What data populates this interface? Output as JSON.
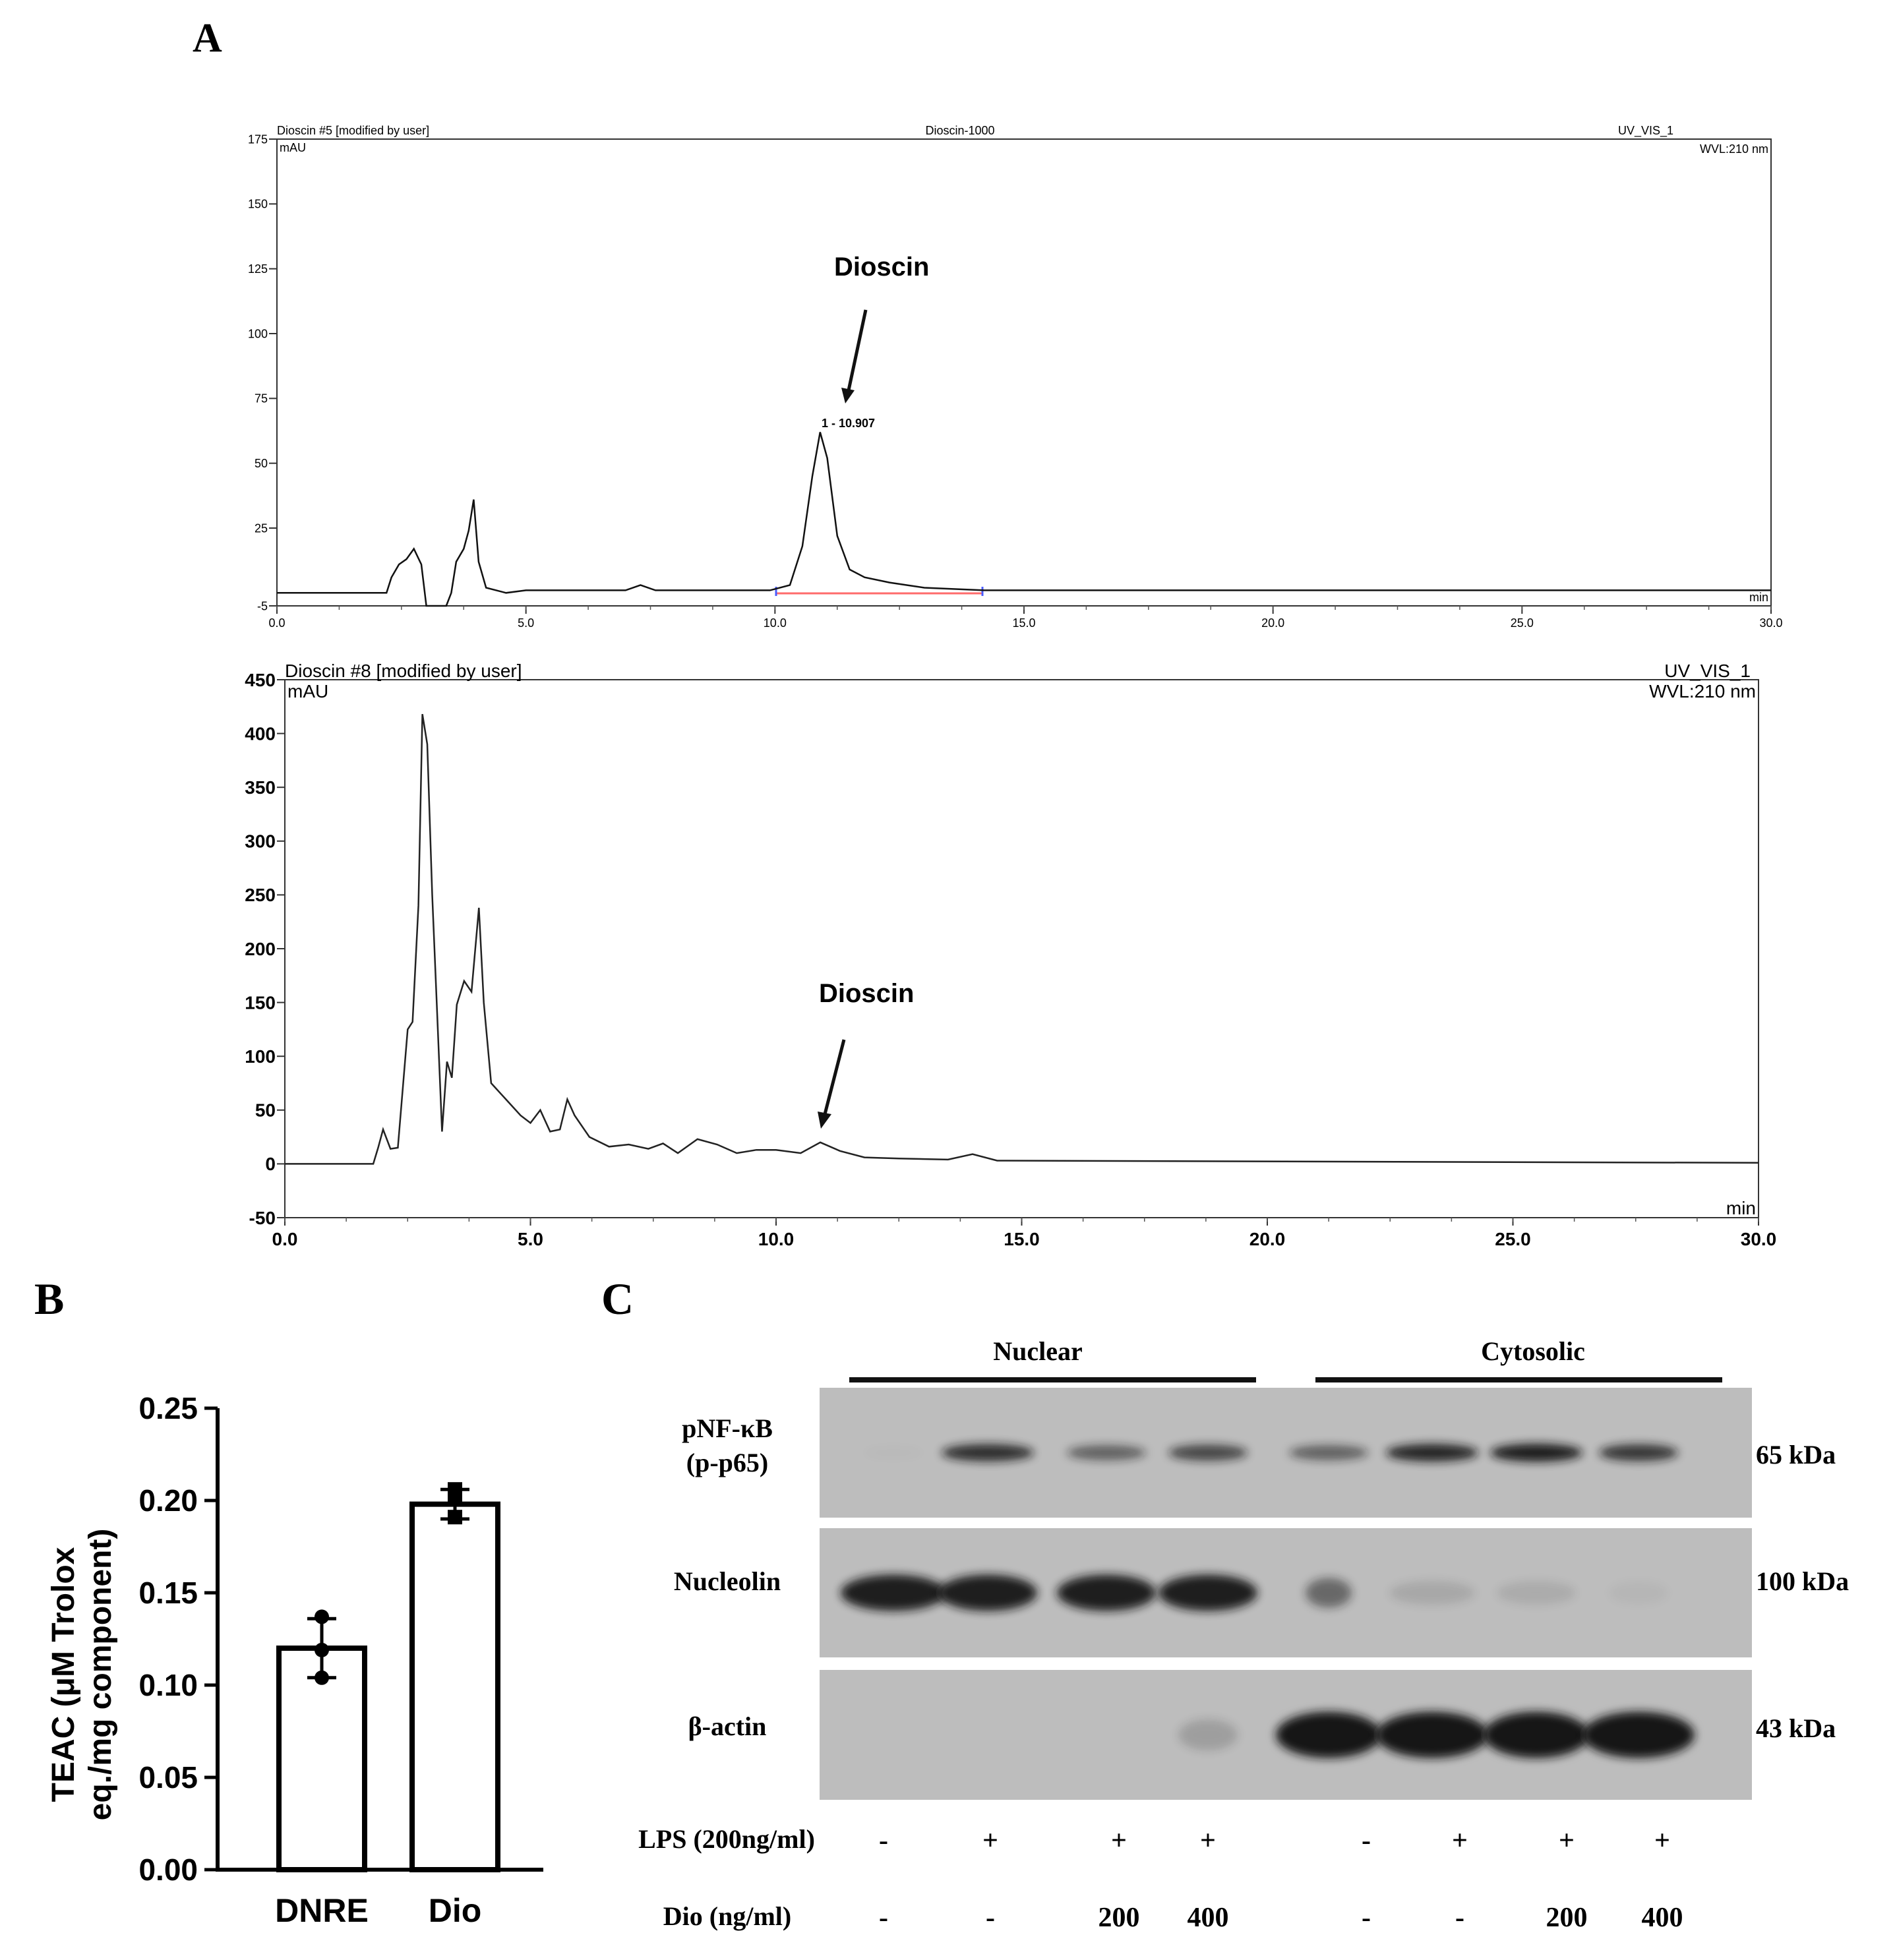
{
  "panel_letters": {
    "a": "A",
    "b": "B",
    "c": "C"
  },
  "colors": {
    "baseline": "#ff6b6b",
    "marker": "#4a5cff",
    "blot_bg": "#bdbdbd",
    "band": "#141414"
  },
  "chromatogram_1": {
    "left_header": "Dioscin #5 [modified by user]",
    "center_header": "Dioscin-1000",
    "right_header": "UV_VIS_1",
    "wavelength": "WVL:210 nm",
    "y_unit": "mAU",
    "x_unit": "min",
    "annotation": "Dioscin",
    "peak_label": "1 - 10.907"
  },
  "chromatogram_2": {
    "left_header": "Dioscin #8 [modified by user]",
    "right_header": "UV_VIS_1",
    "wavelength": "WVL:210 nm",
    "y_unit": "mAU",
    "x_unit": "min",
    "annotation": "Dioscin"
  },
  "panel_b": {
    "ylabel_line1": "TEAC (μM Trolox",
    "ylabel_line2": "eq./mg component)"
  },
  "panel_c": {
    "group_nuclear": "Nuclear",
    "group_cytosolic": "Cytosolic",
    "rows": [
      {
        "label_line1": "pNF-κB",
        "label_line2": "(p-p65)",
        "mw": "65 kDa"
      },
      {
        "label_line1": "Nucleolin",
        "label_line2": "",
        "mw": "100 kDa"
      },
      {
        "label_line1": "β-actin",
        "label_line2": "",
        "mw": "43 kDa"
      }
    ],
    "lps_label": "LPS (200ng/ml)",
    "dio_label": "Dio (ng/ml)",
    "lps": [
      "-",
      "+",
      "+",
      "+",
      "-",
      "+",
      "+",
      "+"
    ],
    "dio": [
      "-",
      "-",
      "200",
      "400",
      "-",
      "-",
      "200",
      "400"
    ]
  },
  "chart_data": [
    {
      "type": "line",
      "x_unit": "min",
      "y_unit": "mAU",
      "xlim": [
        0,
        30
      ],
      "ylim": [
        -5,
        175
      ],
      "xticks": [
        "0.0",
        "5.0",
        "10.0",
        "15.0",
        "20.0",
        "25.0",
        "30.0"
      ],
      "yticks": [
        "-5",
        "25",
        "50",
        "75",
        "100",
        "125",
        "150",
        "175"
      ],
      "points": [
        [
          0,
          0
        ],
        [
          2.2,
          0
        ],
        [
          2.3,
          6
        ],
        [
          2.45,
          11
        ],
        [
          2.6,
          13
        ],
        [
          2.75,
          17
        ],
        [
          2.9,
          11
        ],
        [
          3.0,
          -5
        ],
        [
          3.4,
          -5
        ],
        [
          3.5,
          0
        ],
        [
          3.6,
          12
        ],
        [
          3.75,
          17
        ],
        [
          3.85,
          24
        ],
        [
          3.95,
          36
        ],
        [
          4.05,
          12
        ],
        [
          4.2,
          2
        ],
        [
          4.6,
          0
        ],
        [
          5.0,
          1
        ],
        [
          7.0,
          1
        ],
        [
          7.3,
          3
        ],
        [
          7.6,
          1
        ],
        [
          9.9,
          1
        ],
        [
          10.3,
          3
        ],
        [
          10.55,
          18
        ],
        [
          10.75,
          45
        ],
        [
          10.907,
          62
        ],
        [
          11.05,
          52
        ],
        [
          11.25,
          22
        ],
        [
          11.5,
          9
        ],
        [
          11.8,
          6
        ],
        [
          12.3,
          4
        ],
        [
          13.0,
          2
        ],
        [
          14.2,
          1
        ],
        [
          30,
          1
        ]
      ],
      "peak": {
        "x": 10.907,
        "y": 62
      }
    },
    {
      "type": "line",
      "x_unit": "min",
      "y_unit": "mAU",
      "xlim": [
        0,
        30
      ],
      "ylim": [
        -50,
        450
      ],
      "xticks": [
        "0.0",
        "5.0",
        "10.0",
        "15.0",
        "20.0",
        "25.0",
        "30.0"
      ],
      "yticks": [
        "-50",
        "0",
        "50",
        "100",
        "150",
        "200",
        "250",
        "300",
        "350",
        "400",
        "450"
      ],
      "points": [
        [
          0,
          0
        ],
        [
          1.8,
          0
        ],
        [
          1.9,
          15
        ],
        [
          2.0,
          32
        ],
        [
          2.15,
          14
        ],
        [
          2.3,
          15
        ],
        [
          2.5,
          125
        ],
        [
          2.6,
          132
        ],
        [
          2.72,
          240
        ],
        [
          2.8,
          418
        ],
        [
          2.9,
          390
        ],
        [
          3.0,
          250
        ],
        [
          3.1,
          140
        ],
        [
          3.2,
          30
        ],
        [
          3.3,
          95
        ],
        [
          3.4,
          80
        ],
        [
          3.5,
          148
        ],
        [
          3.65,
          170
        ],
        [
          3.8,
          160
        ],
        [
          3.95,
          238
        ],
        [
          4.05,
          150
        ],
        [
          4.2,
          75
        ],
        [
          4.5,
          60
        ],
        [
          4.8,
          45
        ],
        [
          5.0,
          38
        ],
        [
          5.2,
          50
        ],
        [
          5.4,
          30
        ],
        [
          5.6,
          32
        ],
        [
          5.75,
          60
        ],
        [
          5.9,
          45
        ],
        [
          6.2,
          25
        ],
        [
          6.6,
          16
        ],
        [
          7.0,
          18
        ],
        [
          7.4,
          14
        ],
        [
          7.7,
          19
        ],
        [
          8.0,
          10
        ],
        [
          8.4,
          23
        ],
        [
          8.8,
          18
        ],
        [
          9.2,
          10
        ],
        [
          9.6,
          13
        ],
        [
          10.0,
          13
        ],
        [
          10.5,
          10
        ],
        [
          10.9,
          20
        ],
        [
          11.3,
          12
        ],
        [
          11.8,
          6
        ],
        [
          12.5,
          5
        ],
        [
          13.5,
          4
        ],
        [
          14.0,
          9
        ],
        [
          14.5,
          3
        ],
        [
          30,
          1
        ]
      ]
    },
    {
      "type": "bar",
      "categories": [
        "DNRE",
        "Dio"
      ],
      "values": [
        0.12,
        0.198
      ],
      "error": [
        0.016,
        0.008
      ],
      "points": [
        [
          0.137,
          0.119,
          0.104
        ],
        [
          0.206,
          0.202,
          0.191
        ]
      ],
      "ylim": [
        0,
        0.25
      ],
      "yticks": [
        "0.00",
        "0.05",
        "0.10",
        "0.15",
        "0.20",
        "0.25"
      ]
    }
  ]
}
